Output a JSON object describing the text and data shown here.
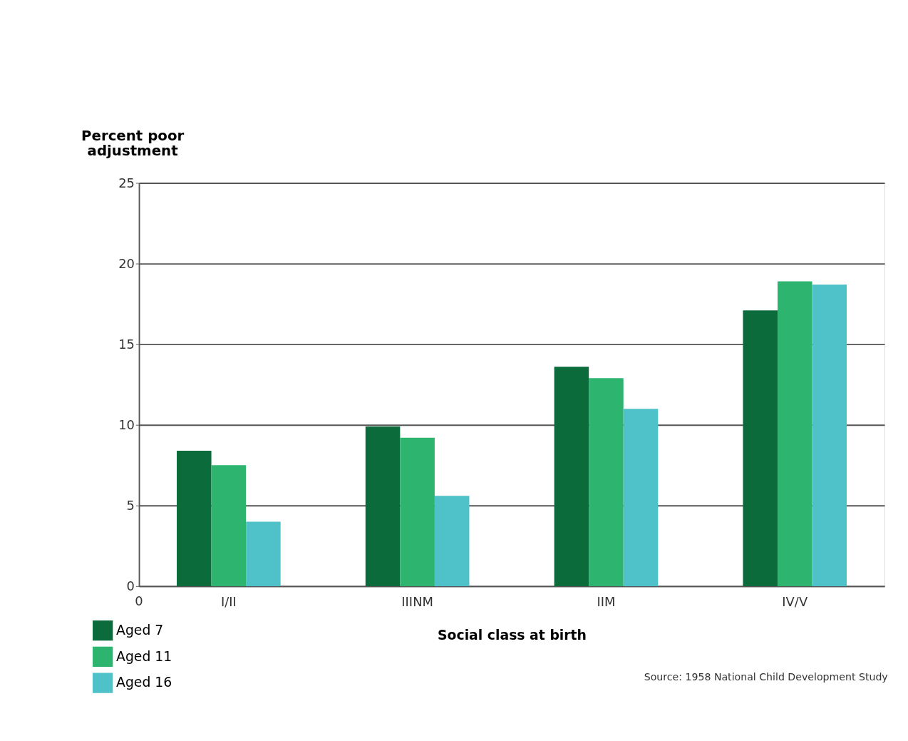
{
  "chart_data": {
    "type": "bar",
    "xlabel": "Social class at birth",
    "ylabel": "Percent poor adjustment",
    "categories": [
      "I/II",
      "IIINM",
      "IIM",
      "IV/V"
    ],
    "series": [
      {
        "name": "Aged 7",
        "color": "#0b6b3a",
        "values": [
          8.4,
          9.9,
          13.6,
          17.1
        ]
      },
      {
        "name": "Aged 11",
        "color": "#2db56f",
        "values": [
          7.5,
          9.2,
          12.9,
          18.9
        ]
      },
      {
        "name": "Aged 16",
        "color": "#4fc1c8",
        "values": [
          4.0,
          5.6,
          11.0,
          18.7
        ]
      }
    ],
    "ylim": [
      0,
      25
    ],
    "yticks": [
      0,
      5,
      10,
      15,
      20,
      25
    ],
    "grid": "y",
    "legend": "bottom left",
    "annotations": [
      "0",
      "Source: 1958 National Child Development Study"
    ]
  }
}
